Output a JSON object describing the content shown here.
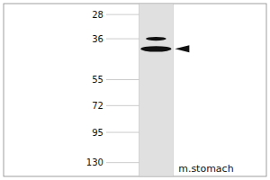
{
  "chart_data": {
    "type": "gel",
    "title": "m.stomach",
    "log": "y",
    "ylim": [
      150,
      25
    ],
    "yticks": [
      130,
      95,
      72,
      55,
      36,
      28
    ],
    "values": [
      40,
      36
    ],
    "color": "#111111"
  }
}
